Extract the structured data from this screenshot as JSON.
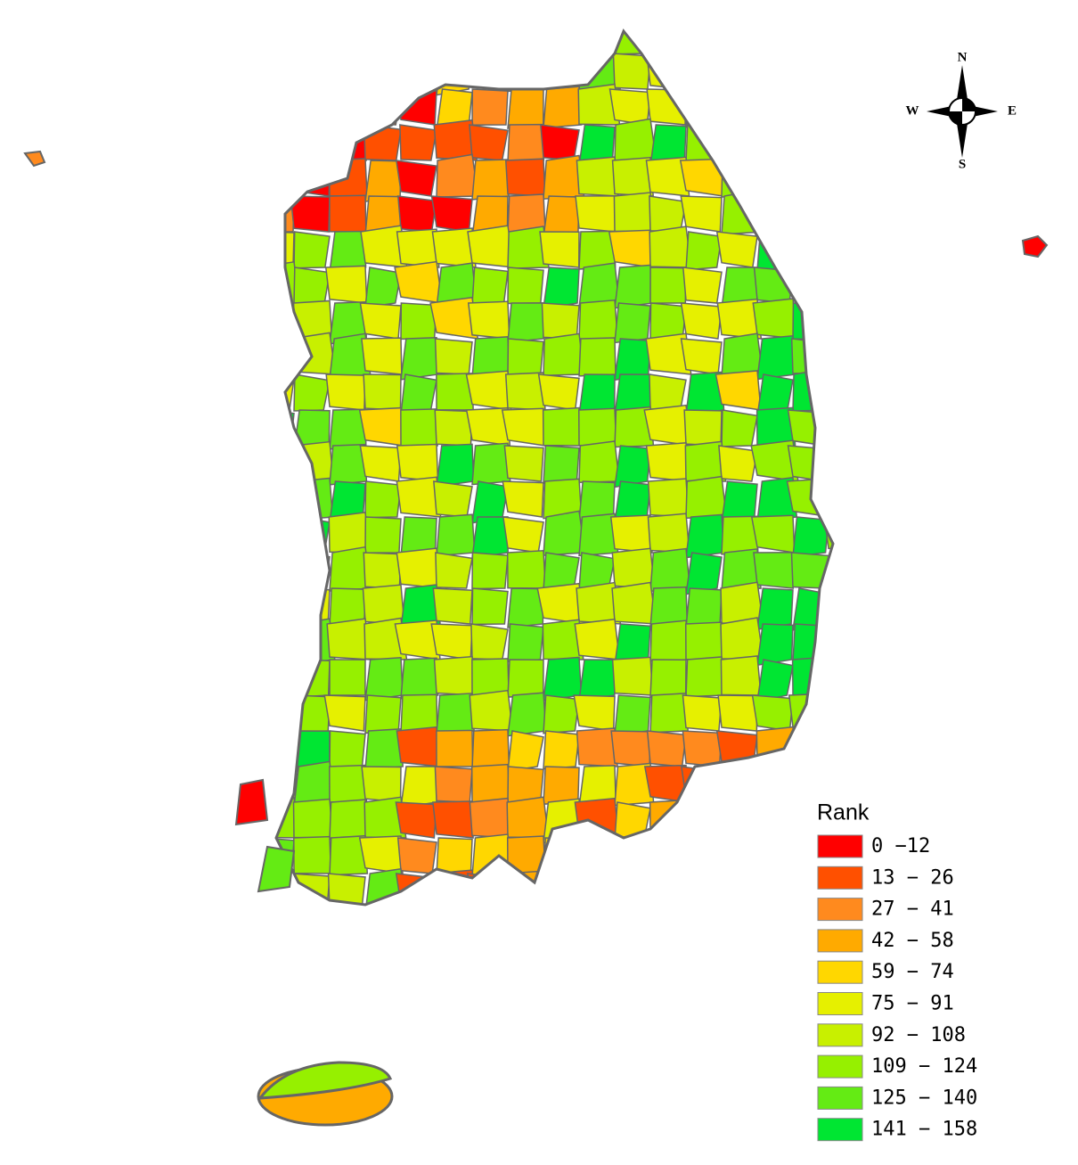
{
  "legend": {
    "title": "Rank",
    "items": [
      {
        "label": "0 −12",
        "color": "#ff0000"
      },
      {
        "label": "13 − 26",
        "color": "#ff5000"
      },
      {
        "label": "27 − 41",
        "color": "#ff8a1e"
      },
      {
        "label": "42 − 58",
        "color": "#ffaa00"
      },
      {
        "label": "59 − 74",
        "color": "#ffd700"
      },
      {
        "label": "75 − 91",
        "color": "#e6f000"
      },
      {
        "label": "92 − 108",
        "color": "#c8f000"
      },
      {
        "label": "109 − 124",
        "color": "#96f000"
      },
      {
        "label": "125 − 140",
        "color": "#64eb14"
      },
      {
        "label": "141 − 158",
        "color": "#00e632"
      }
    ]
  },
  "compass": {
    "north": "N",
    "south": "S",
    "west": "W",
    "east": "E"
  }
}
